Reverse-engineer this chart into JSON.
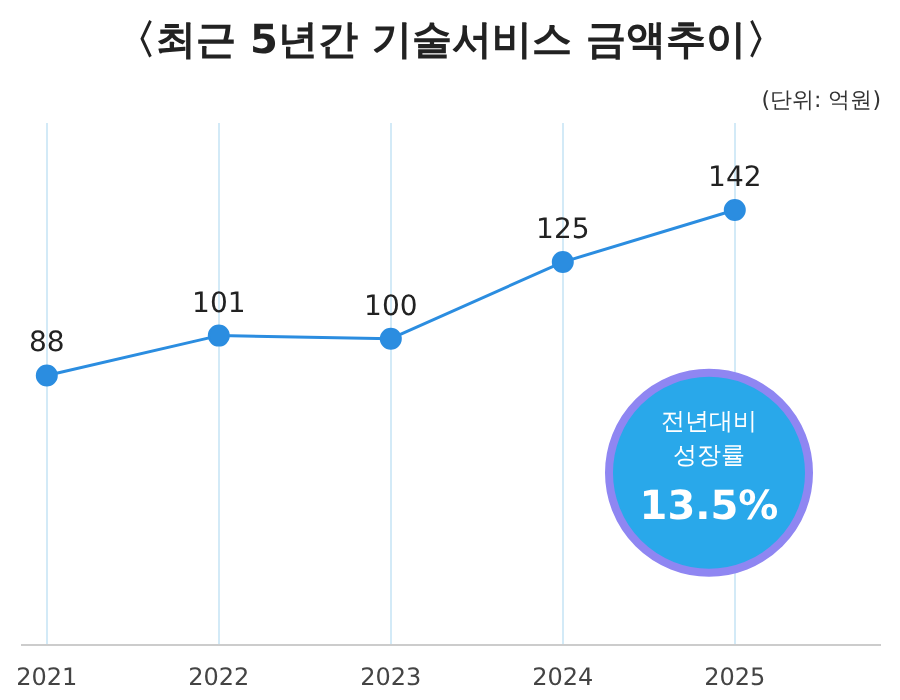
{
  "chart_data": {
    "type": "line",
    "title": "〈최근 5년간 기술서비스 금액추이〉",
    "subtitle": "(단위: 억원)",
    "categories": [
      "2021",
      "2022",
      "2023",
      "2024",
      "2025"
    ],
    "series": [
      {
        "color": "#2b8de0",
        "values": [
          88,
          101,
          100,
          125,
          142
        ]
      }
    ],
    "data_labels": true,
    "marker": "circle",
    "line_style": "solid",
    "grid": "x",
    "annotations": [
      "전년대비 성장률",
      "13.5%"
    ]
  }
}
